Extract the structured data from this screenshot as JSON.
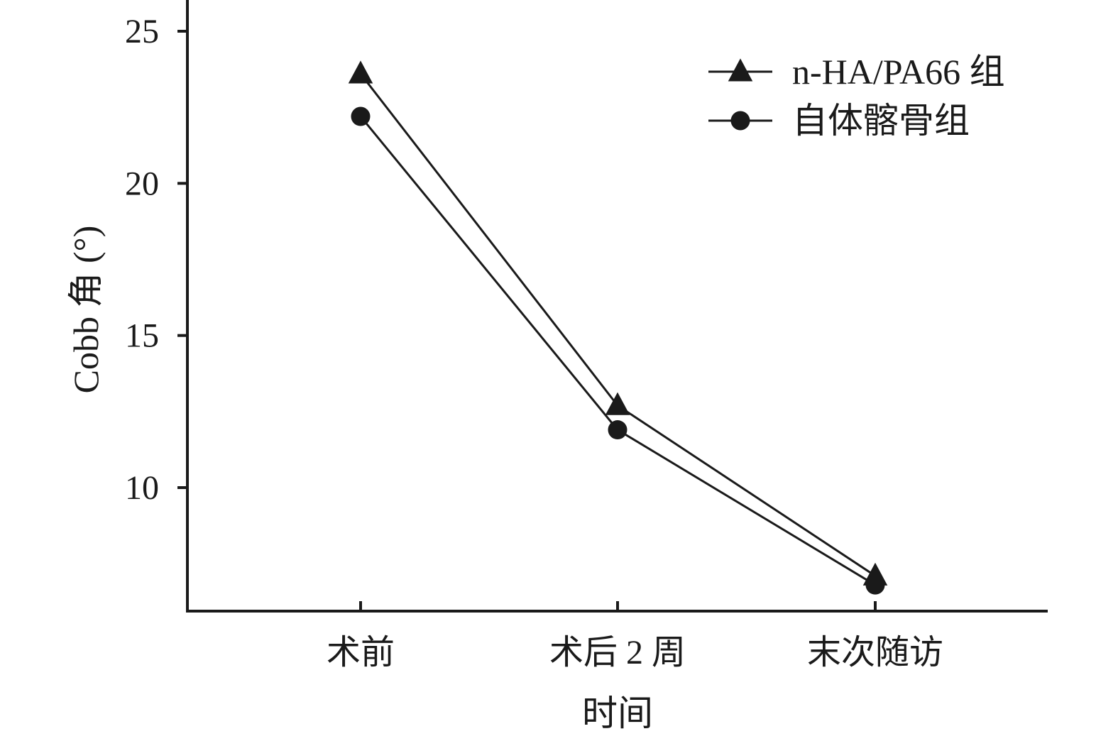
{
  "chart_data": {
    "type": "line",
    "title": "",
    "xlabel": "时间",
    "ylabel": "Cobb 角 (°)",
    "categories": [
      "术前",
      "术后 2 周",
      "末次随访"
    ],
    "yticks": [
      10,
      15,
      20,
      25
    ],
    "ylim": [
      6,
      26
    ],
    "grid": false,
    "legend_position": "top-right",
    "series": [
      {
        "name": "n-HA/PA66 组",
        "marker": "triangle",
        "color": "#1a1a1a",
        "values": [
          23.6,
          12.7,
          7.1
        ]
      },
      {
        "name": "自体髂骨组",
        "marker": "circle",
        "color": "#1a1a1a",
        "values": [
          22.2,
          11.9,
          6.8
        ]
      }
    ]
  }
}
